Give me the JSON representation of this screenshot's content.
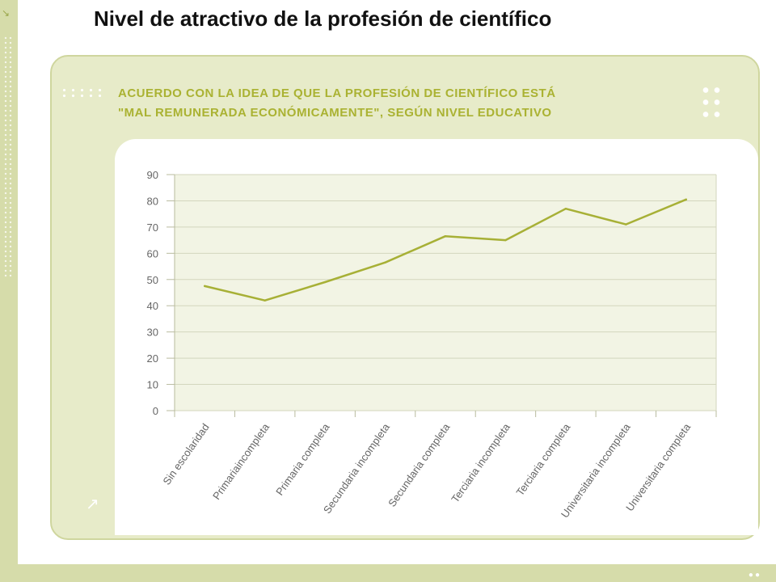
{
  "slide": {
    "title": "Nivel de atractivo de la profesión de científico"
  },
  "chart_heading": {
    "line1": "ACUERDO CON LA IDEA DE QUE LA PROFESIÓN DE CIENTÍFICO ESTÁ",
    "line2": "\"MAL REMUNERADA ECONÓMICAMENTE\", SEGÚN NIVEL EDUCATIVO"
  },
  "colors": {
    "line": "#a7b036",
    "plot_bg": "#f2f4e4",
    "band": "#d6dcaa",
    "panel": "#e7ebc9",
    "heading": "#aab232",
    "grid": "#d3d6bd"
  },
  "icons": [
    "corner-arrow-icon",
    "decorative-arrow-icon"
  ],
  "chart_data": {
    "type": "line",
    "title": "ACUERDO CON LA IDEA DE QUE LA PROFESIÓN DE CIENTÍFICO ESTÁ \"MAL REMUNERADA ECONÓMICAMENTE\", SEGÚN NIVEL EDUCATIVO",
    "xlabel": "",
    "ylabel": "",
    "categories": [
      "Sin escolaridad",
      "Primariaincompleta",
      "Primaria completa",
      "Secundaria incompleta",
      "Secundaria completa",
      "Terciaria incompleta",
      "Terciaria completa",
      "Universitaria incompleta",
      "Universitaria completa"
    ],
    "values": [
      47.5,
      42,
      49,
      56.5,
      66.5,
      65,
      77,
      71,
      80.5
    ],
    "ylim": [
      0,
      90
    ],
    "yticks": [
      0,
      10,
      20,
      30,
      40,
      50,
      60,
      70,
      80,
      90
    ],
    "grid": true,
    "legend": "none"
  }
}
